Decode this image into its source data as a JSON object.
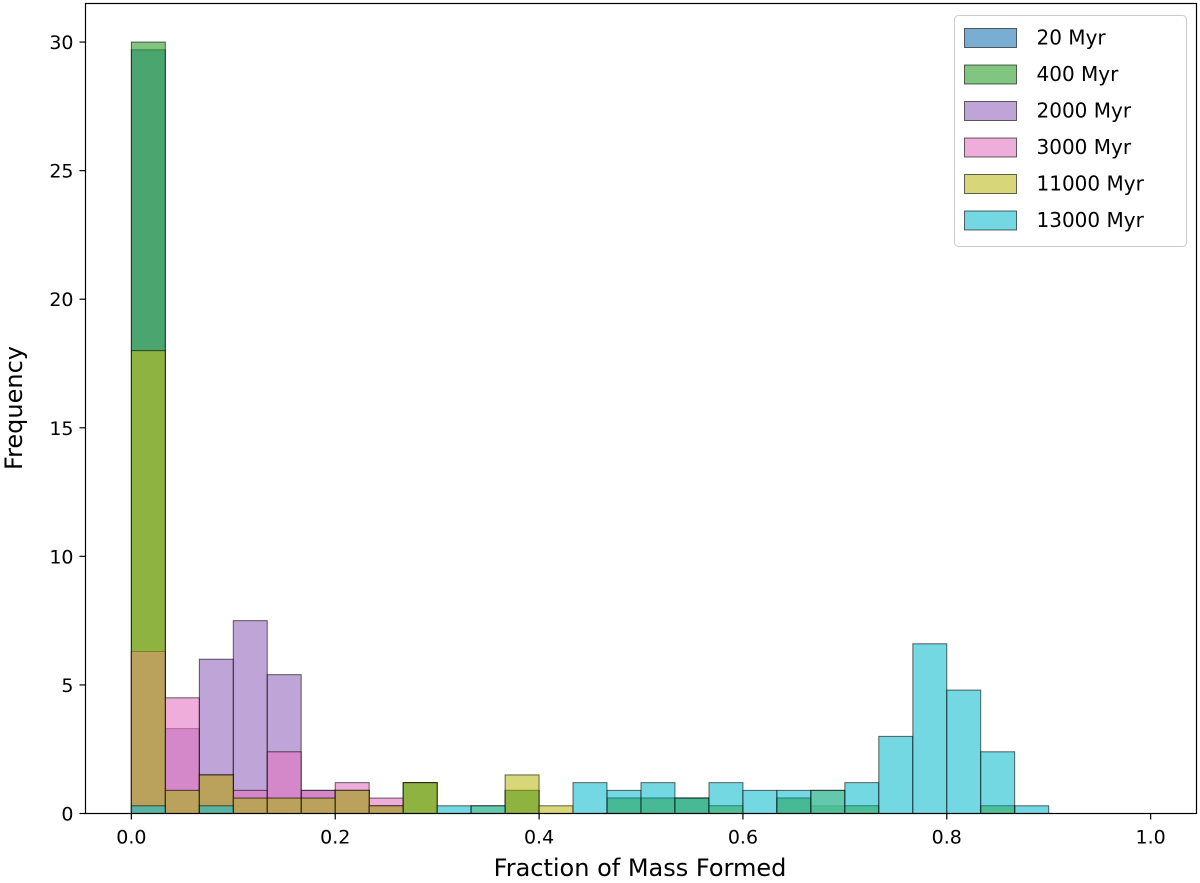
{
  "chart_data": {
    "type": "bar",
    "subtype": "overlapping-histogram",
    "title": "",
    "xlabel": "Fraction of Mass Formed",
    "ylabel": "Frequency",
    "xlim": [
      -0.045,
      1.045
    ],
    "ylim": [
      0,
      31.5
    ],
    "xticks": [
      0.0,
      0.2,
      0.4,
      0.6,
      0.8,
      1.0
    ],
    "xtick_labels": [
      "0.0",
      "0.2",
      "0.4",
      "0.6",
      "0.8",
      "1.0"
    ],
    "yticks": [
      0,
      5,
      10,
      15,
      20,
      25,
      30
    ],
    "ytick_labels": [
      "0",
      "5",
      "10",
      "15",
      "20",
      "25",
      "30"
    ],
    "bin_width": 0.0333,
    "bin_starts": [
      0.0,
      0.0333,
      0.0667,
      0.1,
      0.1333,
      0.1667,
      0.2,
      0.2333,
      0.2667,
      0.3,
      0.3333,
      0.3667,
      0.4,
      0.4333,
      0.4667,
      0.5,
      0.5333,
      0.5667,
      0.6,
      0.6333,
      0.6667,
      0.7,
      0.7333,
      0.7667,
      0.8,
      0.8333,
      0.8667,
      0.9,
      0.9333,
      0.9667
    ],
    "legend_position": "top-right",
    "series": [
      {
        "name": "20 Myr",
        "color": "#1f77b4",
        "values": [
          29.7,
          0.9,
          1.5,
          0.6,
          0.6,
          0.6,
          0.9,
          0.3,
          1.2,
          0,
          0,
          0.9,
          0,
          0,
          0.6,
          0.6,
          0.6,
          0,
          0,
          0.6,
          0,
          0,
          0,
          0,
          0,
          0,
          0,
          0,
          0,
          0
        ]
      },
      {
        "name": "400 Myr",
        "color": "#2ca02c",
        "values": [
          30.0,
          0.9,
          1.5,
          0.6,
          0.6,
          0.6,
          0.9,
          0.3,
          1.2,
          0,
          0,
          0.9,
          0,
          0,
          0.6,
          0.6,
          0.6,
          0.3,
          0,
          0.6,
          0.3,
          0.3,
          0,
          0,
          0,
          0.3,
          0,
          0,
          0,
          0
        ]
      },
      {
        "name": "2000 Myr",
        "color": "#9467bd",
        "values": [
          6.3,
          3.3,
          6.0,
          7.5,
          5.4,
          0.9,
          0.9,
          0.3,
          0,
          0,
          0,
          0,
          0,
          0,
          0,
          0,
          0,
          0,
          0,
          0,
          0,
          0,
          0,
          0,
          0,
          0,
          0,
          0,
          0,
          0
        ]
      },
      {
        "name": "3000 Myr",
        "color": "#e377c2",
        "values": [
          6.3,
          4.5,
          1.5,
          0.9,
          2.4,
          0.9,
          1.2,
          0.6,
          0,
          0,
          0,
          0,
          0,
          0,
          0,
          0,
          0,
          0,
          0,
          0,
          0,
          0,
          0,
          0,
          0,
          0,
          0,
          0,
          0,
          0
        ]
      },
      {
        "name": "11000 Myr",
        "color": "#bcbd22",
        "values": [
          18.0,
          0.9,
          1.5,
          0.6,
          0.6,
          0.6,
          0.9,
          0.3,
          1.2,
          0,
          0.3,
          1.5,
          0.3,
          0,
          0.6,
          0.6,
          0.6,
          0.3,
          0,
          0.6,
          0.9,
          0.3,
          0,
          0,
          0,
          0.3,
          0,
          0,
          0,
          0
        ]
      },
      {
        "name": "13000 Myr",
        "color": "#17becf",
        "values": [
          0.3,
          0,
          0.3,
          0,
          0,
          0,
          0,
          0,
          0,
          0.3,
          0.3,
          0,
          0,
          1.2,
          0.9,
          1.2,
          0.6,
          1.2,
          0.9,
          0.9,
          0.9,
          1.2,
          3.0,
          6.6,
          4.8,
          2.4,
          0.3,
          0,
          0,
          0
        ]
      }
    ]
  }
}
